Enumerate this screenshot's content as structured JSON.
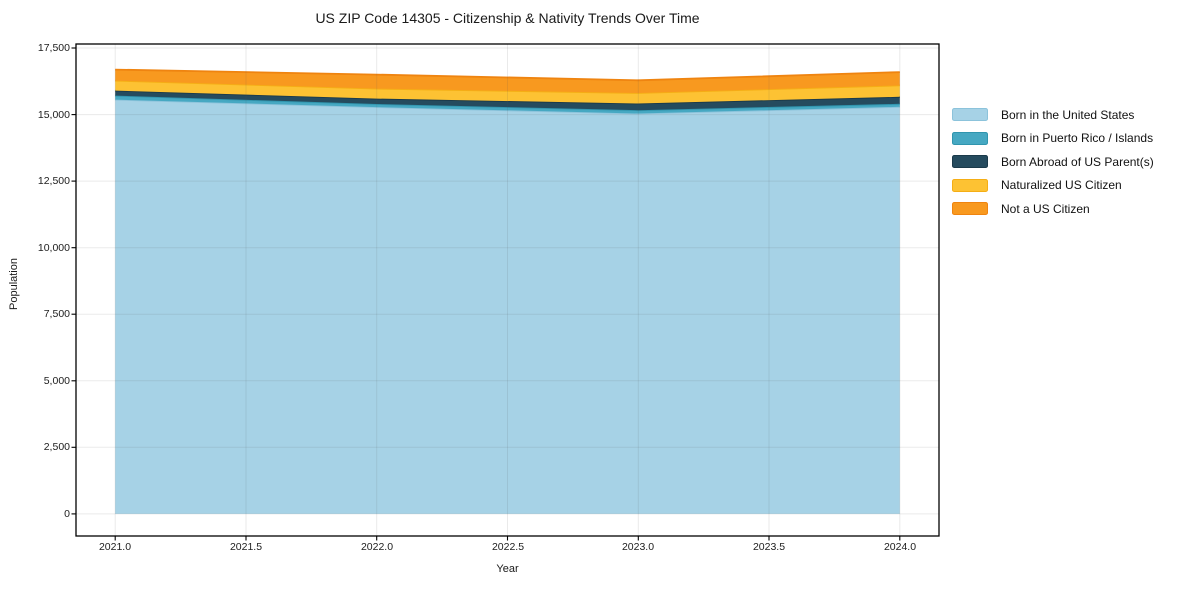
{
  "title": "US ZIP Code 14305 - Citizenship & Nativity Trends Over Time",
  "chart_data": {
    "type": "area",
    "stacked": true,
    "title": "US ZIP Code 14305 - Citizenship & Nativity Trends Over Time",
    "xlabel": "Year",
    "ylabel": "Population",
    "x": [
      2021,
      2022,
      2023,
      2024
    ],
    "series": [
      {
        "name": "Born in the United States",
        "color": "#a6d2e6",
        "line_color": "#8cc3db",
        "values": [
          15560,
          15280,
          15040,
          15290
        ]
      },
      {
        "name": "Born in Puerto Rico / Islands",
        "color": "#46a8c2",
        "line_color": "#3095ae",
        "values": [
          150,
          115,
          125,
          115
        ]
      },
      {
        "name": "Born Abroad of US Parent(s)",
        "color": "#254b5e",
        "line_color": "#1b3a4a",
        "values": [
          190,
          205,
          250,
          260
        ]
      },
      {
        "name": "Naturalized US Citizen",
        "color": "#fdc233",
        "line_color": "#f5ae15",
        "values": [
          375,
          375,
          395,
          430
        ]
      },
      {
        "name": "Not a US Citizen",
        "color": "#f8991f",
        "line_color": "#ef8410",
        "values": [
          415,
          525,
          475,
          500
        ]
      }
    ],
    "xlim": [
      2020.85,
      2024.15
    ],
    "ylim": [
      -830,
      17650
    ],
    "xticks": [
      2021.0,
      2021.5,
      2022.0,
      2022.5,
      2023.0,
      2023.5,
      2024.0
    ],
    "xtick_labels": [
      "2021.0",
      "2021.5",
      "2022.0",
      "2022.5",
      "2023.0",
      "2023.5",
      "2024.0"
    ],
    "yticks": [
      0,
      2500,
      5000,
      7500,
      10000,
      12500,
      15000,
      17500
    ],
    "ytick_labels": [
      "0",
      "2,500",
      "5,000",
      "7,500",
      "10,000",
      "12,500",
      "15,000",
      "17,500"
    ],
    "grid": true,
    "legend_position": "right-outside",
    "grid_color": "#ebebeb",
    "spine_color": "#000000"
  }
}
